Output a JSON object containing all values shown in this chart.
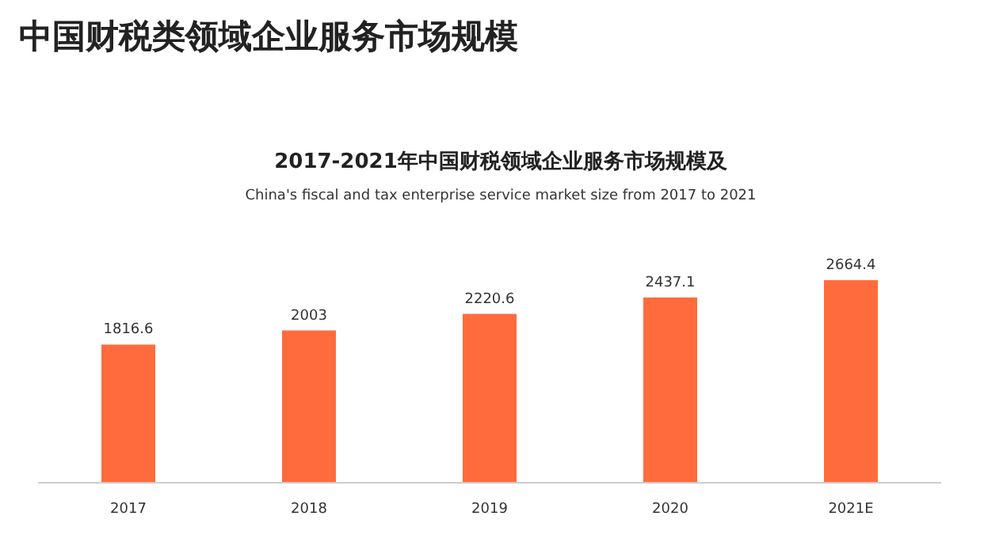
{
  "chart_data": {
    "type": "bar",
    "title": "中国财税类领域企业服务市场规模",
    "subtitle": "2017-2021年中国财税领域企业服务市场规模及",
    "annotations": [
      "China's fiscal and tax enterprise service market size from 2017 to 2021"
    ],
    "categories": [
      "2017",
      "2018",
      "2019",
      "2020",
      "2021E"
    ],
    "values": [
      1816.6,
      2003,
      2220.6,
      2437.1,
      2664.4
    ],
    "color": "#ff6b3d",
    "data_labels": true
  }
}
